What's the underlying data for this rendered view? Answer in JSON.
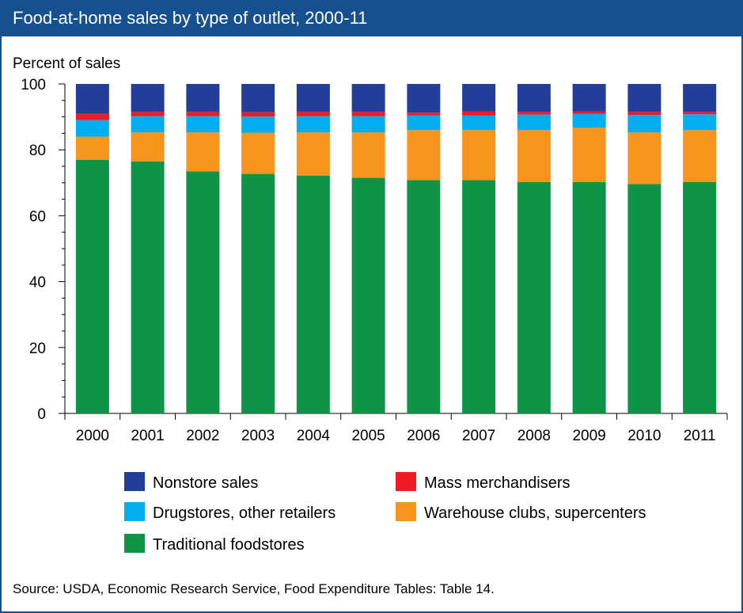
{
  "title": "Food-at-home sales by type of outlet, 2000-11",
  "source": "Source: USDA, Economic Research Service, Food Expenditure Tables: Table 14.",
  "chart_data": {
    "type": "bar",
    "stacked": true,
    "title": "Food-at-home sales by type of outlet, 2000-11",
    "xlabel": "",
    "ylabel": "Percent of sales",
    "ylim": [
      0,
      100
    ],
    "yticks": [
      0,
      20,
      40,
      60,
      80,
      100
    ],
    "grid": false,
    "categories": [
      "2000",
      "2001",
      "2002",
      "2003",
      "2004",
      "2005",
      "2006",
      "2007",
      "2008",
      "2009",
      "2010",
      "2011"
    ],
    "series": [
      {
        "name": "Traditional foodstores",
        "color": "#0f9447",
        "values": [
          77.0,
          76.5,
          73.5,
          72.7,
          72.2,
          71.5,
          70.8,
          70.8,
          70.2,
          70.2,
          69.6,
          70.2
        ]
      },
      {
        "name": "Warehouse clubs, supercenters",
        "color": "#f7941d",
        "values": [
          7.0,
          8.8,
          11.8,
          12.5,
          13.1,
          13.8,
          15.2,
          15.2,
          15.8,
          16.5,
          15.7,
          15.8
        ]
      },
      {
        "name": "Drugstores, other retailers",
        "color": "#00aeef",
        "values": [
          5.0,
          4.9,
          4.9,
          4.9,
          4.9,
          4.9,
          4.5,
          4.4,
          4.7,
          4.2,
          5.3,
          4.8
        ]
      },
      {
        "name": "Mass merchandisers",
        "color": "#ed1c24",
        "values": [
          2.0,
          1.3,
          1.3,
          1.3,
          1.3,
          1.3,
          0.8,
          1.3,
          0.8,
          0.8,
          0.9,
          0.7
        ]
      },
      {
        "name": "Nonstore sales",
        "color": "#233e99",
        "values": [
          9.0,
          8.5,
          8.5,
          8.6,
          8.5,
          8.5,
          8.7,
          8.3,
          8.5,
          8.3,
          8.5,
          8.5
        ]
      }
    ],
    "legend": [
      {
        "label": "Nonstore sales",
        "color": "#233e99"
      },
      {
        "label": "Mass merchandisers",
        "color": "#ed1c24"
      },
      {
        "label": "Drugstores, other retailers",
        "color": "#00aeef"
      },
      {
        "label": "Warehouse clubs, supercenters",
        "color": "#f7941d"
      },
      {
        "label": "Traditional foodstores",
        "color": "#0f9447"
      }
    ]
  }
}
